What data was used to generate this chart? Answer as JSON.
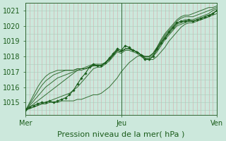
{
  "bg_color": "#cce8dc",
  "plot_bg_color": "#cce8dc",
  "line_color": "#1a5c1a",
  "grid_h_color": "#aaccbb",
  "grid_v_color": "#d4a8a8",
  "axis_color": "#336633",
  "text_color": "#1a5c1a",
  "ylabel_values": [
    1015,
    1016,
    1017,
    1018,
    1019,
    1020,
    1021
  ],
  "ylim": [
    1014.2,
    1021.5
  ],
  "xlim": [
    0,
    48
  ],
  "xlabel": "Pression niveau de la mer( hPa )",
  "xtick_labels": [
    "Mer",
    "Jeu",
    "Ven"
  ],
  "xtick_positions": [
    0,
    24,
    48
  ],
  "day_lines": [
    0,
    24,
    48
  ],
  "lines": [
    [
      1014.5,
      1014.6,
      1014.7,
      1014.8,
      1014.9,
      1014.9,
      1015.0,
      1015.0,
      1015.0,
      1015.1,
      1015.1,
      1015.1,
      1015.1,
      1015.2,
      1015.2,
      1015.3,
      1015.4,
      1015.5,
      1015.5,
      1015.6,
      1015.8,
      1016.0,
      1016.3,
      1016.6,
      1017.0,
      1017.3,
      1017.6,
      1017.8,
      1018.0,
      1018.1,
      1017.9,
      1017.8,
      1017.8,
      1018.0,
      1018.3,
      1018.6,
      1019.0,
      1019.3,
      1019.6,
      1019.9,
      1020.1,
      1020.2,
      1020.2,
      1020.3,
      1020.4,
      1020.5,
      1020.6,
      1020.7,
      1020.8
    ],
    [
      1014.5,
      1014.6,
      1014.7,
      1014.8,
      1014.9,
      1015.0,
      1015.1,
      1015.2,
      1015.3,
      1015.4,
      1015.5,
      1015.6,
      1015.8,
      1016.0,
      1016.3,
      1016.6,
      1016.9,
      1017.2,
      1017.3,
      1017.3,
      1017.5,
      1017.7,
      1018.0,
      1018.3,
      1018.2,
      1018.4,
      1018.4,
      1018.3,
      1018.2,
      1018.0,
      1017.8,
      1017.8,
      1018.0,
      1018.3,
      1018.7,
      1019.1,
      1019.4,
      1019.7,
      1020.0,
      1020.1,
      1020.2,
      1020.3,
      1020.3,
      1020.4,
      1020.4,
      1020.5,
      1020.6,
      1020.8,
      1021.0
    ],
    [
      1014.5,
      1014.7,
      1014.9,
      1015.1,
      1015.3,
      1015.5,
      1015.7,
      1015.9,
      1016.1,
      1016.3,
      1016.5,
      1016.7,
      1016.9,
      1017.1,
      1017.2,
      1017.3,
      1017.4,
      1017.5,
      1017.5,
      1017.5,
      1017.6,
      1017.8,
      1018.1,
      1018.4,
      1018.3,
      1018.5,
      1018.5,
      1018.4,
      1018.3,
      1018.1,
      1017.9,
      1017.9,
      1018.1,
      1018.4,
      1018.8,
      1019.2,
      1019.5,
      1019.8,
      1020.1,
      1020.2,
      1020.3,
      1020.3,
      1020.3,
      1020.4,
      1020.5,
      1020.6,
      1020.7,
      1020.8,
      1021.0
    ],
    [
      1014.5,
      1014.8,
      1015.1,
      1015.4,
      1015.7,
      1016.0,
      1016.2,
      1016.4,
      1016.6,
      1016.7,
      1016.8,
      1016.9,
      1017.0,
      1017.1,
      1017.1,
      1017.2,
      1017.3,
      1017.4,
      1017.4,
      1017.4,
      1017.6,
      1017.8,
      1018.1,
      1018.4,
      1018.3,
      1018.5,
      1018.5,
      1018.4,
      1018.3,
      1018.1,
      1018.0,
      1018.0,
      1018.2,
      1018.5,
      1018.9,
      1019.3,
      1019.6,
      1019.9,
      1020.2,
      1020.3,
      1020.4,
      1020.4,
      1020.4,
      1020.5,
      1020.6,
      1020.7,
      1020.8,
      1021.0,
      1021.1
    ],
    [
      1014.5,
      1014.9,
      1015.3,
      1015.7,
      1016.1,
      1016.4,
      1016.6,
      1016.8,
      1016.9,
      1017.0,
      1017.1,
      1017.1,
      1017.1,
      1017.2,
      1017.2,
      1017.2,
      1017.3,
      1017.4,
      1017.4,
      1017.4,
      1017.6,
      1017.8,
      1018.1,
      1018.4,
      1018.3,
      1018.5,
      1018.5,
      1018.4,
      1018.3,
      1018.1,
      1018.0,
      1018.0,
      1018.2,
      1018.6,
      1019.0,
      1019.4,
      1019.7,
      1020.0,
      1020.3,
      1020.5,
      1020.6,
      1020.6,
      1020.6,
      1020.7,
      1020.8,
      1020.9,
      1021.0,
      1021.1,
      1021.2
    ],
    [
      1014.5,
      1015.0,
      1015.5,
      1016.0,
      1016.4,
      1016.7,
      1016.9,
      1017.0,
      1017.1,
      1017.1,
      1017.1,
      1017.1,
      1017.1,
      1017.2,
      1017.2,
      1017.2,
      1017.3,
      1017.4,
      1017.4,
      1017.4,
      1017.6,
      1017.8,
      1018.1,
      1018.4,
      1018.3,
      1018.5,
      1018.5,
      1018.4,
      1018.3,
      1018.1,
      1018.0,
      1018.0,
      1018.2,
      1018.6,
      1019.1,
      1019.5,
      1019.8,
      1020.1,
      1020.4,
      1020.6,
      1020.7,
      1020.7,
      1020.8,
      1020.9,
      1021.0,
      1021.1,
      1021.2,
      1021.2,
      1021.3
    ]
  ],
  "marker_line": [
    1014.5,
    1014.7,
    1014.8,
    1014.9,
    1015.0,
    1015.0,
    1015.1,
    1015.0,
    1015.1,
    1015.2,
    1015.3,
    1015.5,
    1015.8,
    1016.2,
    1016.6,
    1016.9,
    1017.3,
    1017.5,
    1017.4,
    1017.4,
    1017.6,
    1017.9,
    1018.2,
    1018.5,
    1018.4,
    1018.7,
    1018.6,
    1018.4,
    1018.3,
    1018.1,
    1017.8,
    1017.8,
    1018.0,
    1018.5,
    1018.9,
    1019.2,
    1019.6,
    1019.9,
    1020.2,
    1020.3,
    1020.3,
    1020.4,
    1020.3,
    1020.4,
    1020.5,
    1020.6,
    1020.7,
    1020.8,
    1021.0
  ],
  "n_points": 49,
  "tick_fontsize": 7,
  "label_fontsize": 8,
  "n_vgrid": 49,
  "n_hgrid_minor": 5
}
